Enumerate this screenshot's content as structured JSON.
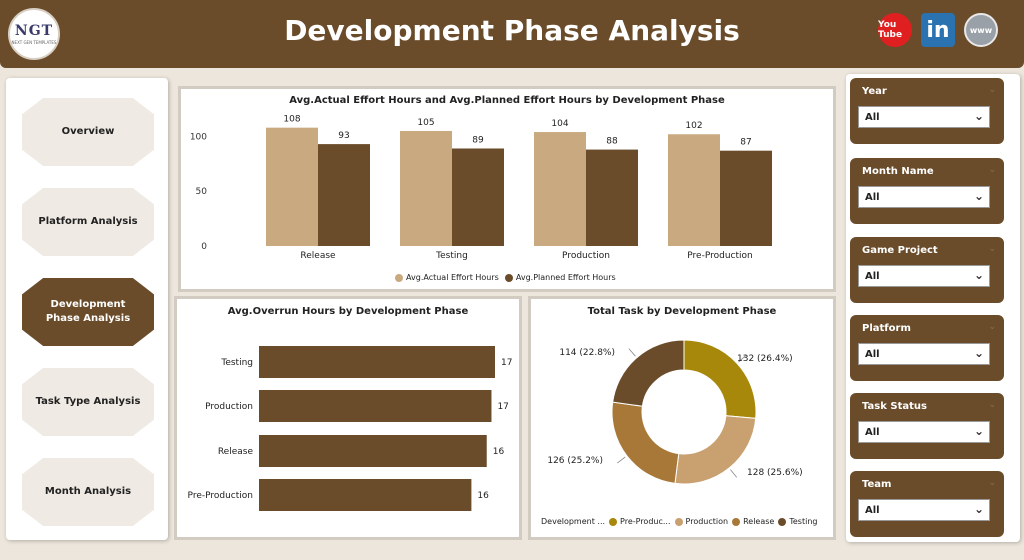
{
  "header": {
    "title": "Development Phase Analysis",
    "logo_text": "NGT",
    "logo_subtext": "NEXT GEN TEMPLATES",
    "youtube_label": "You Tube",
    "linkedin_label": "in",
    "www_label": "www"
  },
  "nav": {
    "items": [
      {
        "label": "Overview",
        "active": false
      },
      {
        "label": "Platform Analysis",
        "active": false
      },
      {
        "label": "Development Phase Analysis",
        "active": true
      },
      {
        "label": "Task Type Analysis",
        "active": false
      },
      {
        "label": "Month Analysis",
        "active": false
      }
    ]
  },
  "filters": [
    {
      "label": "Year",
      "value": "All"
    },
    {
      "label": "Month Name",
      "value": "All"
    },
    {
      "label": "Game Project",
      "value": "All"
    },
    {
      "label": "Platform",
      "value": "All"
    },
    {
      "label": "Task Status",
      "value": "All"
    },
    {
      "label": "Team",
      "value": "All"
    }
  ],
  "colors": {
    "brand": "#6b4c2a",
    "actual": "#c9a97f",
    "planned": "#6b4c2a",
    "pre_production": "#a8880a",
    "production": "#c9a070",
    "release": "#a87838",
    "testing": "#6b4c2a"
  },
  "chart_data": [
    {
      "type": "bar",
      "title": "Avg.Actual Effort Hours and Avg.Planned Effort Hours by Development Phase",
      "categories": [
        "Release",
        "Testing",
        "Production",
        "Pre-Production"
      ],
      "series": [
        {
          "name": "Avg.Actual Effort Hours",
          "values": [
            108,
            105,
            104,
            102
          ]
        },
        {
          "name": "Avg.Planned Effort Hours",
          "values": [
            93,
            89,
            88,
            87
          ]
        }
      ],
      "yticks": [
        "100",
        "50",
        "0"
      ],
      "ylim": [
        0,
        115
      ]
    },
    {
      "type": "bar",
      "orientation": "horizontal",
      "title": "Avg.Overrun Hours by Development Phase",
      "categories": [
        "Testing",
        "Production",
        "Release",
        "Pre-Production"
      ],
      "values": [
        17,
        17,
        16,
        16
      ],
      "bar_fractions": [
        1.0,
        0.985,
        0.965,
        0.9
      ]
    },
    {
      "type": "pie",
      "title": "Total Task by Development Phase",
      "legend_title": "Development ...",
      "slices": [
        {
          "name": "Pre-Produc...",
          "value": 132,
          "label": "132 (26.4%)"
        },
        {
          "name": "Production",
          "value": 128,
          "label": "128 (25.6%)"
        },
        {
          "name": "Release",
          "value": 126,
          "label": "126 (25.2%)"
        },
        {
          "name": "Testing",
          "value": 114,
          "label": "114 (22.8%)"
        }
      ]
    }
  ]
}
